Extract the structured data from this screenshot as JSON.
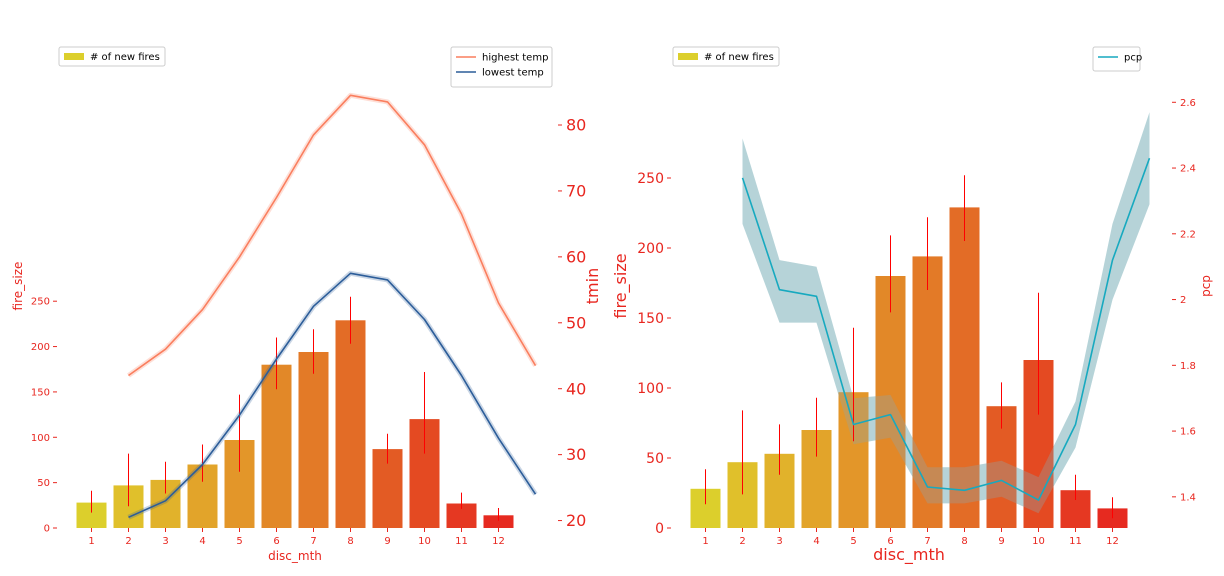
{
  "colors": {
    "axis": "#e8261f",
    "errbar": "#ff0000",
    "highest_temp": "#fa7e5e",
    "lowest_temp": "#2c5d99",
    "pcp": "#17a9bf",
    "pcp_band": "#a8dfe8",
    "bars": [
      "#dccf2c",
      "#e0c02b",
      "#e1b22b",
      "#e2a42a",
      "#e39629",
      "#e28828",
      "#e37a27",
      "#e36c26",
      "#e35b24",
      "#e44a22",
      "#e53822",
      "#e62a20"
    ]
  },
  "chart_data": [
    {
      "type": "bar",
      "panel": "left",
      "categories": [
        "1",
        "2",
        "3",
        "4",
        "5",
        "6",
        "7",
        "8",
        "9",
        "10",
        "11",
        "12"
      ],
      "values": [
        28,
        47,
        53,
        70,
        97,
        180,
        194,
        229,
        87,
        120,
        27,
        14
      ],
      "errors": [
        [
          17,
          41
        ],
        [
          24,
          82
        ],
        [
          38,
          73
        ],
        [
          51,
          92
        ],
        [
          62,
          147
        ],
        [
          153,
          210
        ],
        [
          170,
          219
        ],
        [
          203,
          255
        ],
        [
          71,
          104
        ],
        [
          82,
          172
        ],
        [
          21,
          39
        ],
        [
          8,
          22
        ]
      ],
      "xlabel": "disc_mth",
      "ylabel": "fire_size",
      "ylim": [
        0,
        265
      ],
      "yticks": [
        0,
        50,
        100,
        150,
        200,
        250
      ],
      "legend": {
        "label": "# of new fires",
        "placement": "top-left"
      },
      "twin": {
        "type": "line",
        "ylabel": "tmin",
        "ylim": [
          16.9,
          88.8
        ],
        "yticks": [
          20,
          30,
          40,
          50,
          60,
          70,
          80
        ],
        "legend_placement": "top-right",
        "series": [
          {
            "name": "highest temp",
            "x": [
              2,
              3,
              4,
              5,
              6,
              7,
              8,
              9,
              10,
              11,
              12,
              13
            ],
            "values": [
              42,
              46,
              52,
              60,
              69,
              78.5,
              84.5,
              83.5,
              77,
              66.5,
              53,
              43.5
            ]
          },
          {
            "name": "lowest temp",
            "x": [
              2,
              3,
              4,
              5,
              6,
              7,
              8,
              9,
              10,
              11,
              12,
              13
            ],
            "values": [
              20.5,
              23,
              28.5,
              36,
              44.5,
              52.5,
              57.5,
              56.5,
              50.5,
              42,
              32.5,
              24
            ]
          }
        ]
      }
    },
    {
      "type": "bar",
      "panel": "right",
      "categories": [
        "1",
        "2",
        "3",
        "4",
        "5",
        "6",
        "7",
        "8",
        "9",
        "10",
        "11",
        "12"
      ],
      "values": [
        28,
        47,
        53,
        70,
        97,
        180,
        194,
        229,
        87,
        120,
        27,
        14
      ],
      "errors": [
        [
          17,
          42
        ],
        [
          24,
          84
        ],
        [
          38,
          74
        ],
        [
          51,
          93
        ],
        [
          62,
          143
        ],
        [
          154,
          209
        ],
        [
          170,
          222
        ],
        [
          205,
          252
        ],
        [
          71,
          104
        ],
        [
          81,
          168
        ],
        [
          20,
          38
        ],
        [
          7,
          22
        ]
      ],
      "xlabel": "disc_mth",
      "ylabel": "fire_size",
      "ylim": [
        0,
        265
      ],
      "yticks": [
        0,
        50,
        100,
        150,
        200,
        250
      ],
      "legend": {
        "label": "# of new fires",
        "placement": "top-left"
      },
      "twin": {
        "type": "line",
        "ylabel": "pcp",
        "ylim": [
          1.29,
          2.61
        ],
        "yticks": [
          1.4,
          1.6,
          1.8,
          2.0,
          2.2,
          2.4,
          2.6
        ],
        "legend_placement": "top-right",
        "series": [
          {
            "name": "pcp",
            "x": [
              2,
              3,
              4,
              5,
              6,
              7,
              8,
              9,
              10,
              11,
              12,
              13
            ],
            "values": [
              2.37,
              2.03,
              2.01,
              1.62,
              1.65,
              1.43,
              1.42,
              1.45,
              1.39,
              1.62,
              2.12,
              2.43
            ],
            "band_low": [
              2.23,
              1.93,
              1.93,
              1.56,
              1.58,
              1.38,
              1.38,
              1.4,
              1.35,
              1.55,
              2.0,
              2.29
            ],
            "band_high": [
              2.49,
              2.12,
              2.1,
              1.7,
              1.71,
              1.49,
              1.49,
              1.51,
              1.46,
              1.69,
              2.23,
              2.57
            ]
          }
        ]
      }
    }
  ]
}
